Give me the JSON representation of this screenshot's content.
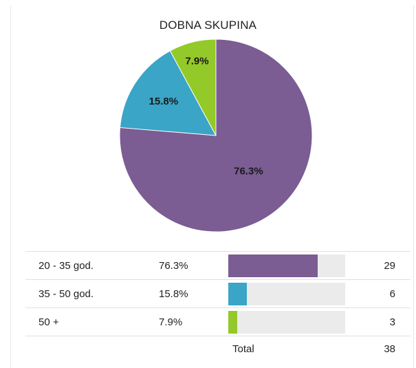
{
  "chart_data": {
    "type": "pie",
    "title": "DOBNA SKUPINA",
    "slices": [
      {
        "label": "20 - 35 god.",
        "percent_label": "76.3%",
        "value": 29,
        "color": "#7b5c93"
      },
      {
        "label": "35 - 50 god.",
        "percent_label": "15.8%",
        "value": 6,
        "color": "#3aa5c6"
      },
      {
        "label": "50 +",
        "percent_label": "7.9%",
        "value": 3,
        "color": "#93c928"
      }
    ],
    "total_label": "Total",
    "total": "38"
  }
}
